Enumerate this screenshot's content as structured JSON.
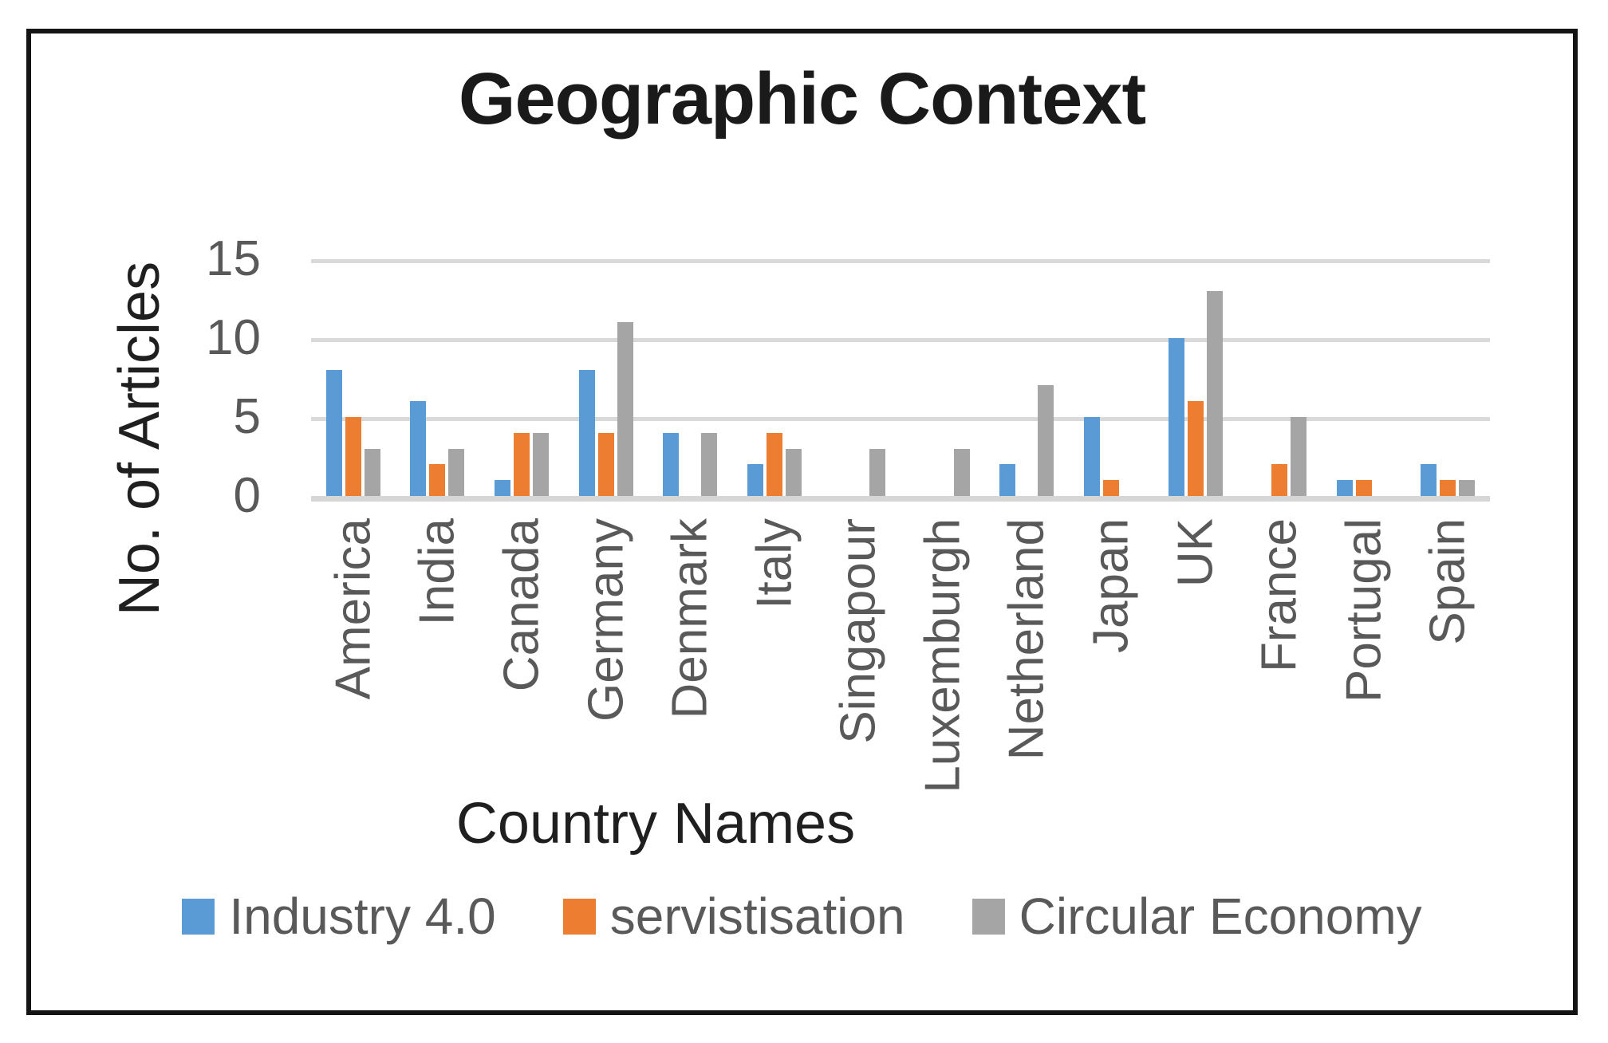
{
  "title": "Geographic Context",
  "axes": {
    "y_title": "No. of Articles",
    "x_title": "Country Names"
  },
  "legend": {
    "items": [
      "Industry 4.0",
      "servistisation",
      "Circular Economy"
    ]
  },
  "colors": {
    "series_blue": "#5B9BD5",
    "series_orange": "#ED7D31",
    "series_gray": "#A5A5A5",
    "gridline": "#D9D9D9",
    "axis_text": "#595959",
    "title_text": "#1A1A1A",
    "frame_border": "#141414"
  },
  "chart_data": {
    "type": "bar",
    "title": "Geographic Context",
    "xlabel": "Country Names",
    "ylabel": "No. of Articles",
    "ylim": [
      0,
      15
    ],
    "yticks": [
      15,
      10,
      5,
      0
    ],
    "grid": true,
    "legend_position": "bottom",
    "categories": [
      "America",
      "India",
      "Canada",
      "Germany",
      "Denmark",
      "Italy",
      "Singapour",
      "Luxemburgh",
      "Netherland",
      "Japan",
      "UK",
      "France",
      "Portugal",
      "Spain"
    ],
    "series": [
      {
        "name": "Industry 4.0",
        "color": "#5B9BD5",
        "values": [
          8,
          6,
          1,
          8,
          4,
          2,
          0,
          0,
          2,
          5,
          10,
          0,
          1,
          2
        ]
      },
      {
        "name": "servistisation",
        "color": "#ED7D31",
        "values": [
          5,
          2,
          4,
          4,
          0,
          4,
          0,
          0,
          0,
          1,
          6,
          2,
          1,
          1
        ]
      },
      {
        "name": "Circular Economy",
        "color": "#A5A5A5",
        "values": [
          3,
          3,
          4,
          11,
          4,
          3,
          3,
          3,
          7,
          0,
          13,
          5,
          0,
          1
        ]
      }
    ]
  }
}
